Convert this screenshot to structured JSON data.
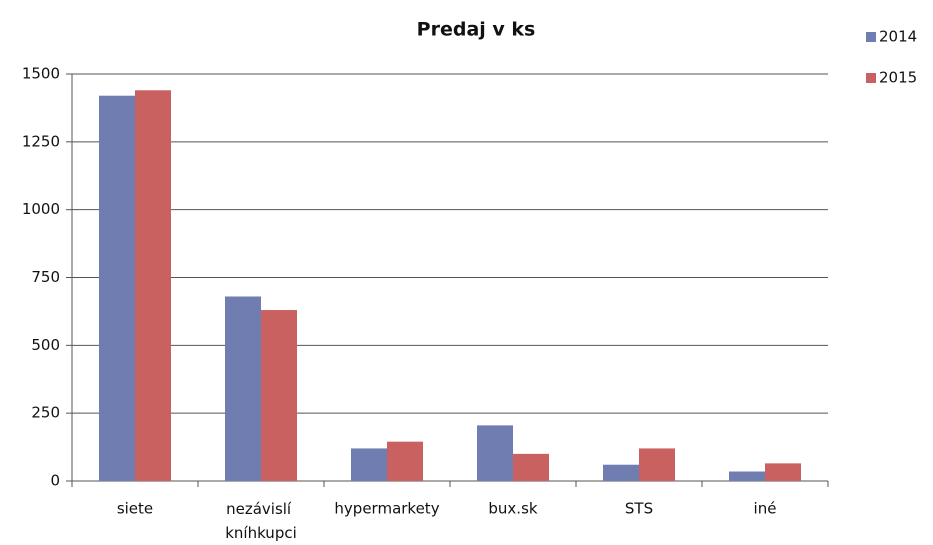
{
  "chart_data": {
    "type": "bar",
    "title": "Predaj v ks",
    "categories": [
      "siete",
      "nezávislí kníhkupci",
      "hypermarkety",
      "bux.sk",
      "STS",
      "iné"
    ],
    "series": [
      {
        "name": "2014",
        "color": "#6f7db0",
        "values": [
          1420,
          680,
          120,
          205,
          60,
          35
        ]
      },
      {
        "name": "2015",
        "color": "#c8615f",
        "values": [
          1440,
          630,
          145,
          100,
          120,
          65
        ]
      }
    ],
    "ylim": [
      0,
      1500
    ],
    "yticks": [
      0,
      250,
      500,
      750,
      1000,
      1250,
      1500
    ],
    "grid": true,
    "legend": "right"
  }
}
